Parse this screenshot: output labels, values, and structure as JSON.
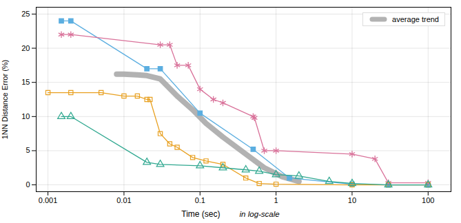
{
  "chart_data": {
    "type": "line",
    "ylabel": "1NN Distance Error (%)",
    "xlabel": "Time (sec)",
    "annotations": [
      "in log-scale"
    ],
    "log": "x",
    "xlim": [
      0.0007,
      200
    ],
    "xticks": [
      0.001,
      0.01,
      0.1,
      1,
      10,
      100
    ],
    "ylim": [
      -1,
      26
    ],
    "yticks": [
      0,
      5,
      10,
      15,
      20,
      25
    ],
    "grid": true,
    "legend": "upper right",
    "series": [
      {
        "name": "average trend",
        "color": "#AAAAAA",
        "x": [
          0.008,
          0.01,
          0.015,
          0.02,
          0.03,
          0.05,
          0.08,
          0.12,
          0.2,
          0.4,
          0.7,
          1.2,
          2.0
        ],
        "values": [
          16.2,
          16.2,
          16.1,
          16.0,
          15.5,
          13.0,
          11.0,
          9.0,
          7.0,
          4.5,
          2.5,
          1.2,
          0.5
        ]
      },
      {
        "color": "#5BAEE0",
        "marker": "square",
        "x": [
          0.0015,
          0.002,
          0.02,
          0.03,
          0.1,
          0.5,
          1.5,
          10,
          30,
          100
        ],
        "values": [
          24.0,
          24.0,
          17.0,
          17.0,
          10.5,
          5.2,
          1.0,
          0.1,
          0.0,
          0.0
        ]
      },
      {
        "color": "#D9729A",
        "marker": "asterisk",
        "x": [
          0.0015,
          0.002,
          0.03,
          0.04,
          0.05,
          0.07,
          0.1,
          0.15,
          0.2,
          0.5,
          0.52,
          0.7,
          1.0,
          10,
          20,
          30,
          100
        ],
        "values": [
          22.0,
          22.0,
          20.5,
          20.5,
          17.5,
          17.5,
          14.0,
          12.5,
          12.0,
          10.0,
          9.8,
          5.0,
          5.0,
          4.5,
          3.8,
          0.3,
          0.3
        ]
      },
      {
        "color": "#E8A020",
        "marker": "square-open",
        "x": [
          0.001,
          0.002,
          0.005,
          0.01,
          0.015,
          0.02,
          0.022,
          0.03,
          0.04,
          0.05,
          0.08,
          0.12,
          0.2,
          0.4,
          0.6,
          1.0,
          10,
          30,
          100
        ],
        "values": [
          13.5,
          13.5,
          13.5,
          13.0,
          13.0,
          12.5,
          12.5,
          7.5,
          6.0,
          5.5,
          4.0,
          3.5,
          3.0,
          1.0,
          0.2,
          0.1,
          0.0,
          0.0,
          0.0
        ]
      },
      {
        "color": "#30A890",
        "marker": "triangle-open",
        "x": [
          0.0015,
          0.002,
          0.02,
          0.03,
          0.1,
          0.2,
          0.4,
          0.6,
          1.0,
          2.0,
          5.0,
          10,
          30,
          100
        ],
        "values": [
          10.0,
          10.0,
          3.3,
          3.0,
          2.8,
          2.5,
          2.2,
          2.0,
          1.5,
          1.3,
          0.5,
          0.2,
          0.0,
          0.0
        ]
      }
    ]
  }
}
